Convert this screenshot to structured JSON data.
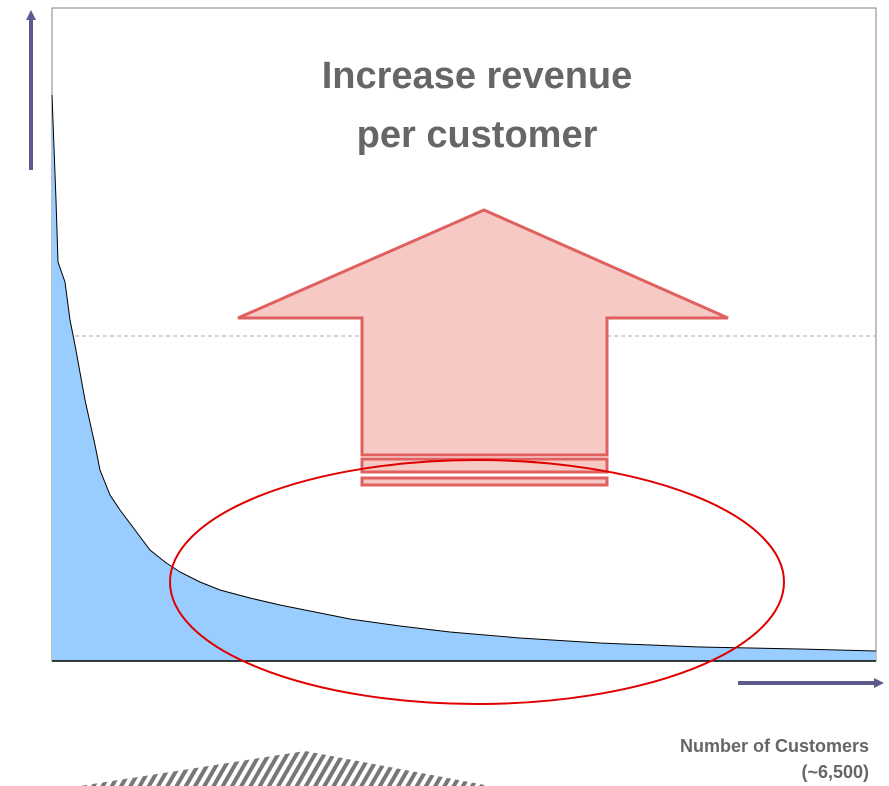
{
  "title": {
    "lines": [
      "Increase revenue",
      "per customer"
    ]
  },
  "axis_label": {
    "lines": [
      "Number of Customers",
      "(~6,500)"
    ]
  }
}
